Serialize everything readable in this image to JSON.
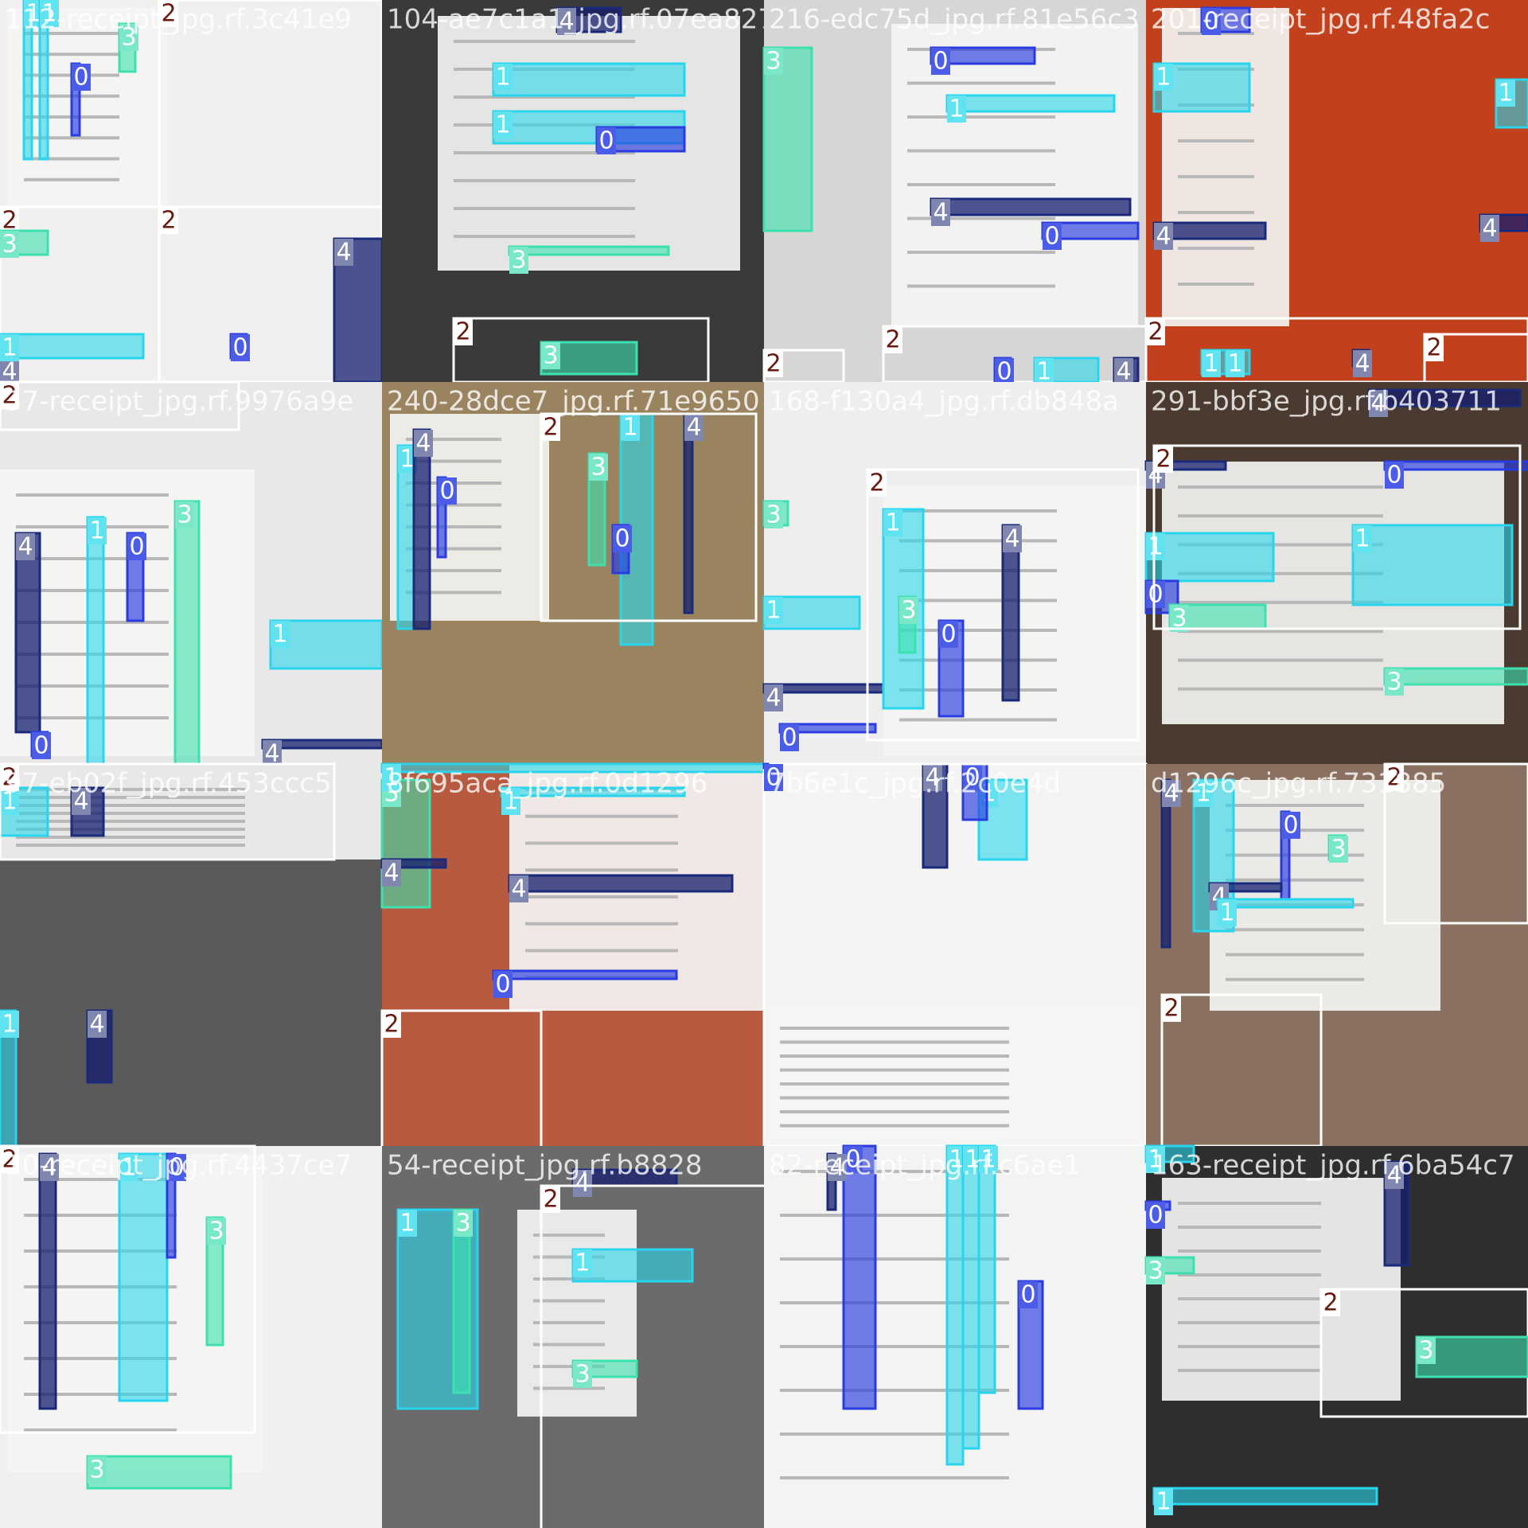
{
  "tiles": [
    {
      "filename": "112-receipt_jpg.rf.3c41e9",
      "boxes": [
        "1",
        "1",
        "2",
        "3",
        "0",
        "2",
        "4",
        "3",
        "1",
        "2",
        "0",
        "4"
      ]
    },
    {
      "filename": "104-ae7c1a1_jpg.rf.07ea827",
      "boxes": [
        "4",
        "1",
        "1",
        "0",
        "3",
        "2",
        "3"
      ]
    },
    {
      "filename": "216-edc75d_jpg.rf.81e56c3",
      "boxes": [
        "3",
        "0",
        "1",
        "4",
        "0",
        "2",
        "2",
        "1",
        "4",
        "0"
      ]
    },
    {
      "filename": "201-receipt_jpg.rf.48fa2c",
      "boxes": [
        "0",
        "1",
        "4",
        "2",
        "1",
        "1",
        "4",
        "1",
        "4",
        "2"
      ]
    },
    {
      "filename": "37-receipt_jpg.rf.9976a9e",
      "boxes": [
        "4",
        "1",
        "0",
        "3",
        "1",
        "4",
        "2",
        "0"
      ]
    },
    {
      "filename": "240-28dce7_jpg.rf.71e9650",
      "boxes": [
        "1",
        "4",
        "0",
        "3",
        "1",
        "4",
        "0",
        "2"
      ]
    },
    {
      "filename": "168-f130a4_jpg.rf.db848a",
      "boxes": [
        "3",
        "1",
        "4",
        "0",
        "1",
        "3",
        "0",
        "4",
        "2"
      ]
    },
    {
      "filename": "291-bbf3e_jpg.rf.b403711",
      "boxes": [
        "4",
        "1",
        "0",
        "3",
        "0",
        "1",
        "4",
        "3",
        "2"
      ]
    },
    {
      "filename": "97-eb02f_jpg.rf.453ccc5",
      "boxes": [
        "1",
        "4",
        "2",
        "1",
        "4"
      ]
    },
    {
      "filename": "8f695aca_jpg.rf.0d1296",
      "boxes": [
        "3",
        "1",
        "4",
        "2",
        "4",
        "1",
        "0"
      ]
    },
    {
      "filename": "7b6e1c_jpg.rf.2c0e4d",
      "boxes": [
        "1",
        "4",
        "0",
        "2",
        "0"
      ]
    },
    {
      "filename": "d1296c_jpg.rf.731885",
      "boxes": [
        "4",
        "1",
        "0",
        "3",
        "2",
        "4",
        "1",
        "2"
      ]
    },
    {
      "filename": "10-receipt_jpg.rf.4437ce7",
      "boxes": [
        "4",
        "1",
        "0",
        "3",
        "2",
        "3"
      ]
    },
    {
      "filename": "54-receipt_jpg.rf.b8828",
      "boxes": [
        "1",
        "3",
        "4",
        "1",
        "3",
        "2"
      ]
    },
    {
      "filename": "82-receipt_jpg.rf.c6ae1",
      "boxes": [
        "0",
        "4",
        "1",
        "1",
        "1",
        "0"
      ]
    },
    {
      "filename": "163-receipt_jpg.rf.6ba54c7",
      "boxes": [
        "1",
        "0",
        "3",
        "4",
        "2",
        "3",
        "1"
      ]
    }
  ]
}
